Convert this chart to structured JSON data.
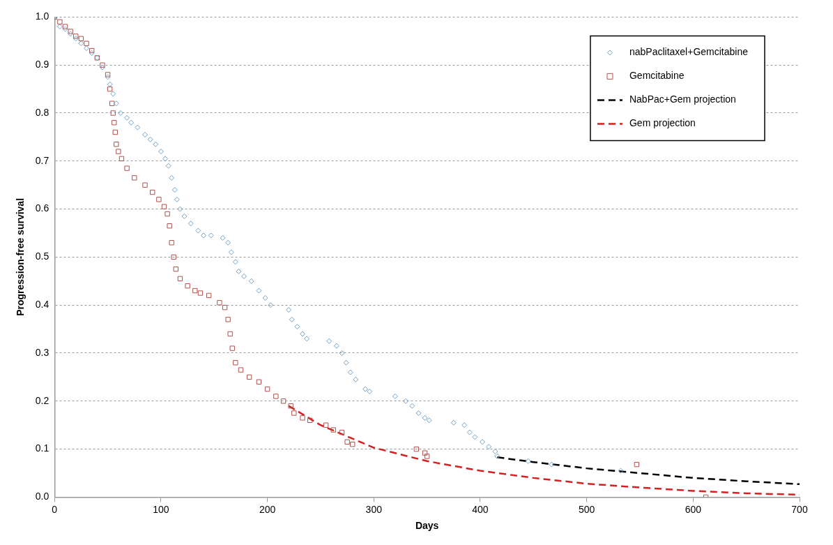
{
  "chart_data": {
    "type": "scatter",
    "xlabel": "Days",
    "ylabel": "Progression-free survival",
    "xlim": [
      0,
      700
    ],
    "xticks": [
      0,
      100,
      200,
      300,
      400,
      500,
      600,
      700
    ],
    "ylim": [
      0,
      1
    ],
    "yticks": [
      {
        "value": 0,
        "label": "0.0"
      },
      {
        "value": 0.1,
        "label": "0.1"
      },
      {
        "value": 0.2,
        "label": "0.2"
      },
      {
        "value": 0.3,
        "label": "0.3"
      },
      {
        "value": 0.4,
        "label": "0.4"
      },
      {
        "value": 0.5,
        "label": "0.5"
      },
      {
        "value": 0.6,
        "label": "0.6"
      },
      {
        "value": 0.7,
        "label": "0.7"
      },
      {
        "value": 0.8,
        "label": "0.8"
      },
      {
        "value": 0.9,
        "label": "0.9"
      },
      {
        "value": 1,
        "label": "1.0"
      }
    ],
    "grid": "y",
    "legend": "top right",
    "series": [
      {
        "name": "nabPaclitaxel+Gemcitabine",
        "type": "scatter",
        "marker": "diamond",
        "color": "#6fa1c9",
        "x": [
          0,
          5,
          10,
          15,
          20,
          25,
          30,
          35,
          40,
          45,
          50,
          52,
          55,
          58,
          62,
          68,
          72,
          78,
          85,
          90,
          95,
          100,
          104,
          107,
          110,
          113,
          115,
          118,
          122,
          128,
          135,
          140,
          147,
          158,
          163,
          166,
          170,
          173,
          178,
          185,
          192,
          198,
          203,
          220,
          223,
          228,
          233,
          237,
          258,
          265,
          270,
          274,
          278,
          283,
          292,
          296,
          320,
          330,
          336,
          342,
          348,
          352,
          375,
          385,
          390,
          395,
          402,
          408,
          414,
          416,
          445,
          467,
          532
        ],
        "values": [
          1.0,
          0.98,
          0.975,
          0.965,
          0.955,
          0.945,
          0.935,
          0.925,
          0.915,
          0.895,
          0.875,
          0.86,
          0.84,
          0.82,
          0.8,
          0.79,
          0.78,
          0.77,
          0.755,
          0.745,
          0.735,
          0.72,
          0.705,
          0.69,
          0.665,
          0.64,
          0.62,
          0.6,
          0.585,
          0.57,
          0.555,
          0.545,
          0.545,
          0.54,
          0.53,
          0.51,
          0.49,
          0.47,
          0.46,
          0.45,
          0.43,
          0.415,
          0.4,
          0.39,
          0.37,
          0.355,
          0.34,
          0.33,
          0.325,
          0.315,
          0.3,
          0.28,
          0.26,
          0.245,
          0.225,
          0.22,
          0.21,
          0.2,
          0.19,
          0.175,
          0.165,
          0.16,
          0.155,
          0.15,
          0.135,
          0.125,
          0.115,
          0.105,
          0.095,
          0.085,
          0.075,
          0.068,
          0.055
        ]
      },
      {
        "name": "Gemcitabine",
        "type": "scatter",
        "marker": "square",
        "color": "#b0504c",
        "x": [
          0,
          5,
          10,
          15,
          20,
          25,
          30,
          35,
          40,
          45,
          50,
          52,
          54,
          55,
          56,
          57,
          58,
          60,
          63,
          68,
          75,
          85,
          92,
          98,
          103,
          106,
          108,
          110,
          112,
          114,
          118,
          125,
          132,
          137,
          145,
          155,
          160,
          163,
          165,
          167,
          170,
          175,
          183,
          192,
          200,
          208,
          215,
          222,
          225,
          233,
          240,
          255,
          262,
          270,
          275,
          280,
          340,
          348,
          350,
          547,
          612
        ],
        "values": [
          1.0,
          0.99,
          0.98,
          0.97,
          0.96,
          0.955,
          0.945,
          0.93,
          0.915,
          0.9,
          0.88,
          0.85,
          0.82,
          0.8,
          0.78,
          0.76,
          0.735,
          0.72,
          0.705,
          0.685,
          0.665,
          0.65,
          0.635,
          0.62,
          0.605,
          0.59,
          0.565,
          0.53,
          0.5,
          0.475,
          0.455,
          0.44,
          0.43,
          0.425,
          0.42,
          0.405,
          0.395,
          0.37,
          0.34,
          0.31,
          0.28,
          0.265,
          0.25,
          0.24,
          0.225,
          0.21,
          0.2,
          0.19,
          0.175,
          0.165,
          0.16,
          0.15,
          0.14,
          0.135,
          0.115,
          0.11,
          0.1,
          0.092,
          0.085,
          0.068,
          0.0
        ]
      },
      {
        "name": "NabPac+Gem projection",
        "type": "line",
        "line_style": "dashed",
        "marker": "none",
        "color": "#000000",
        "x": [
          416,
          450,
          500,
          550,
          600,
          650,
          700
        ],
        "values": [
          0.083,
          0.073,
          0.06,
          0.05,
          0.04,
          0.033,
          0.027
        ]
      },
      {
        "name": "Gem projection",
        "type": "line",
        "line_style": "dashed",
        "marker": "none",
        "color": "#d42020",
        "x": [
          220,
          250,
          300,
          350,
          400,
          450,
          500,
          550,
          600,
          650,
          700
        ],
        "values": [
          0.19,
          0.15,
          0.103,
          0.075,
          0.055,
          0.04,
          0.028,
          0.02,
          0.013,
          0.008,
          0.005
        ]
      }
    ]
  }
}
